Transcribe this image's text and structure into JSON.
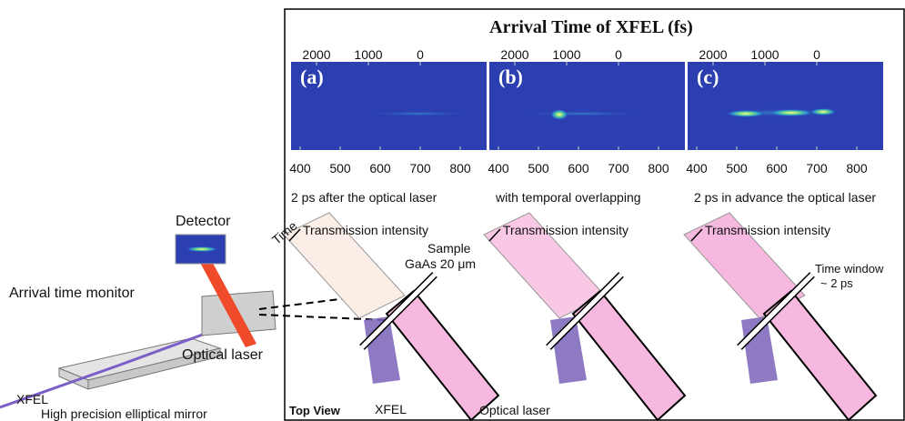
{
  "left": {
    "detector": "Detector",
    "arrival_time_monitor": "Arrival time monitor",
    "optical_laser": "Optical laser",
    "xfel": "XFEL",
    "mirror": "High precision elliptical mirror"
  },
  "figure": {
    "title": "Arrival Time of XFEL (fs)",
    "top_ticks": [
      2000,
      1000,
      0
    ],
    "bottom_ticks": [
      400,
      500,
      600,
      700,
      800
    ],
    "panels": [
      {
        "label": "(a)",
        "caption": "2 ps after the optical laser",
        "intensity": "Transmission intensity"
      },
      {
        "label": "(b)",
        "caption": "with temporal overlapping",
        "intensity": "Transmission intensity"
      },
      {
        "label": "(c)",
        "caption": "2 ps in advance the optical laser",
        "intensity": "Transmission intensity"
      }
    ],
    "time": "Time",
    "sample": "Sample",
    "sample_material": "GaAs 20 μm",
    "xfel": "XFEL",
    "optical_laser": "Optical laser",
    "top_view": "Top View",
    "time_window": "Time window",
    "time_window_value": "~ 2 ps"
  }
}
